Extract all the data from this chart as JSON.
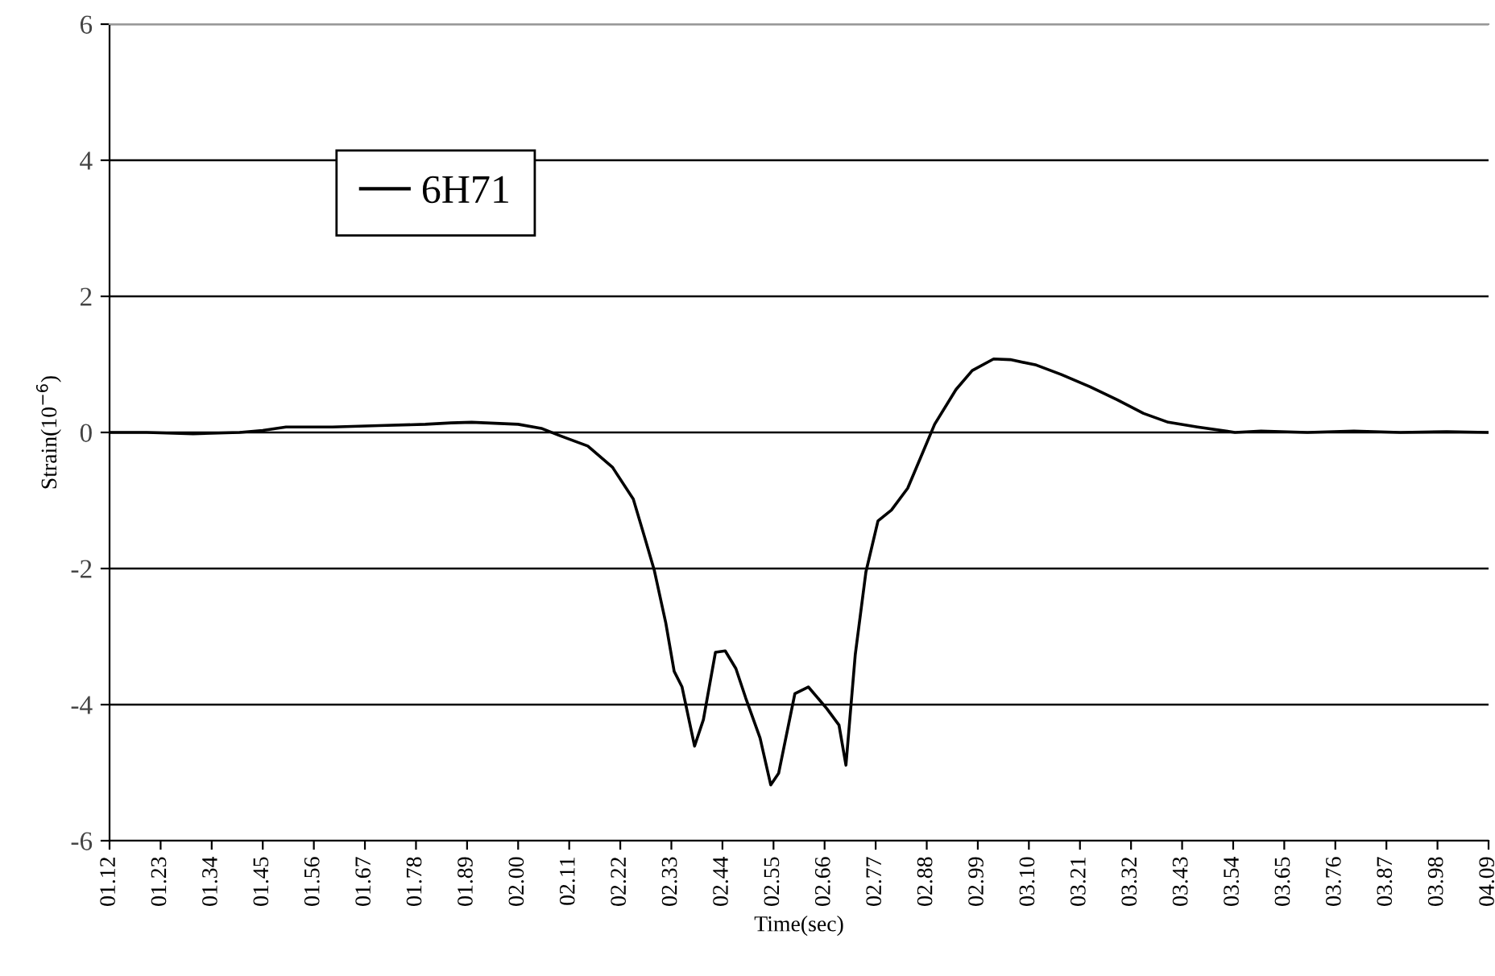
{
  "chart_data": {
    "type": "line",
    "xlabel": "Time(sec)",
    "ylabel": "Strain(10$^{−6}$)",
    "series": [
      {
        "name": "6H71",
        "color": "#000000",
        "x": [
          1.12,
          1.2,
          1.3,
          1.4,
          1.45,
          1.5,
          1.6,
          1.7,
          1.8,
          1.856,
          1.9,
          2.0,
          2.05,
          2.087,
          2.15,
          2.203,
          2.248,
          2.272,
          2.293,
          2.318,
          2.336,
          2.353,
          2.38,
          2.399,
          2.425,
          2.446,
          2.469,
          2.49,
          2.521,
          2.544,
          2.561,
          2.596,
          2.625,
          2.665,
          2.691,
          2.706,
          2.726,
          2.749,
          2.775,
          2.804,
          2.839,
          2.873,
          2.897,
          2.943,
          2.978,
          3.024,
          3.06,
          3.116,
          3.17,
          3.232,
          3.29,
          3.347,
          3.4,
          3.463,
          3.544,
          3.6,
          3.7,
          3.8,
          3.9,
          4.0,
          4.09
        ],
        "values": [
          0.0,
          0.0,
          -0.02,
          0.0,
          0.03,
          0.08,
          0.08,
          0.1,
          0.12,
          0.14,
          0.15,
          0.12,
          0.06,
          -0.04,
          -0.2,
          -0.51,
          -0.98,
          -1.53,
          -2.02,
          -2.8,
          -3.51,
          -3.74,
          -4.61,
          -4.22,
          -3.23,
          -3.21,
          -3.47,
          -3.9,
          -4.49,
          -5.18,
          -5.01,
          -3.84,
          -3.74,
          -4.06,
          -4.3,
          -4.89,
          -3.27,
          -2.05,
          -1.3,
          -1.14,
          -0.82,
          -0.27,
          0.12,
          0.63,
          0.91,
          1.08,
          1.07,
          0.99,
          0.85,
          0.67,
          0.48,
          0.28,
          0.15,
          0.08,
          0.0,
          0.02,
          0.0,
          0.02,
          0.0,
          0.01,
          0.0
        ]
      }
    ],
    "xlim": [
      1.12,
      4.09
    ],
    "xticks": [
      {
        "value": 1.12,
        "label": "01.12"
      },
      {
        "value": 1.23,
        "label": "01.23"
      },
      {
        "value": 1.34,
        "label": "01.34"
      },
      {
        "value": 1.45,
        "label": "01.45"
      },
      {
        "value": 1.56,
        "label": "01.56"
      },
      {
        "value": 1.67,
        "label": "01.67"
      },
      {
        "value": 1.78,
        "label": "01.78"
      },
      {
        "value": 1.89,
        "label": "01.89"
      },
      {
        "value": 2.0,
        "label": "02.00"
      },
      {
        "value": 2.11,
        "label": "02.11"
      },
      {
        "value": 2.22,
        "label": "02.22"
      },
      {
        "value": 2.33,
        "label": "02.33"
      },
      {
        "value": 2.44,
        "label": "02.44"
      },
      {
        "value": 2.55,
        "label": "02.55"
      },
      {
        "value": 2.66,
        "label": "02.66"
      },
      {
        "value": 2.77,
        "label": "02.77"
      },
      {
        "value": 2.88,
        "label": "02.88"
      },
      {
        "value": 2.99,
        "label": "02.99"
      },
      {
        "value": 3.1,
        "label": "03.10"
      },
      {
        "value": 3.21,
        "label": "03.21"
      },
      {
        "value": 3.32,
        "label": "03.32"
      },
      {
        "value": 3.43,
        "label": "03.43"
      },
      {
        "value": 3.54,
        "label": "03.54"
      },
      {
        "value": 3.65,
        "label": "03.65"
      },
      {
        "value": 3.76,
        "label": "03.76"
      },
      {
        "value": 3.87,
        "label": "03.87"
      },
      {
        "value": 3.98,
        "label": "03.98"
      },
      {
        "value": 4.09,
        "label": "04.09"
      }
    ],
    "ylim": [
      -6,
      6
    ],
    "yticks": [
      -6,
      -4,
      -2,
      0,
      2,
      4,
      6
    ],
    "grid": "y",
    "legend": "top left",
    "marker": "none",
    "line_style": "solid"
  }
}
